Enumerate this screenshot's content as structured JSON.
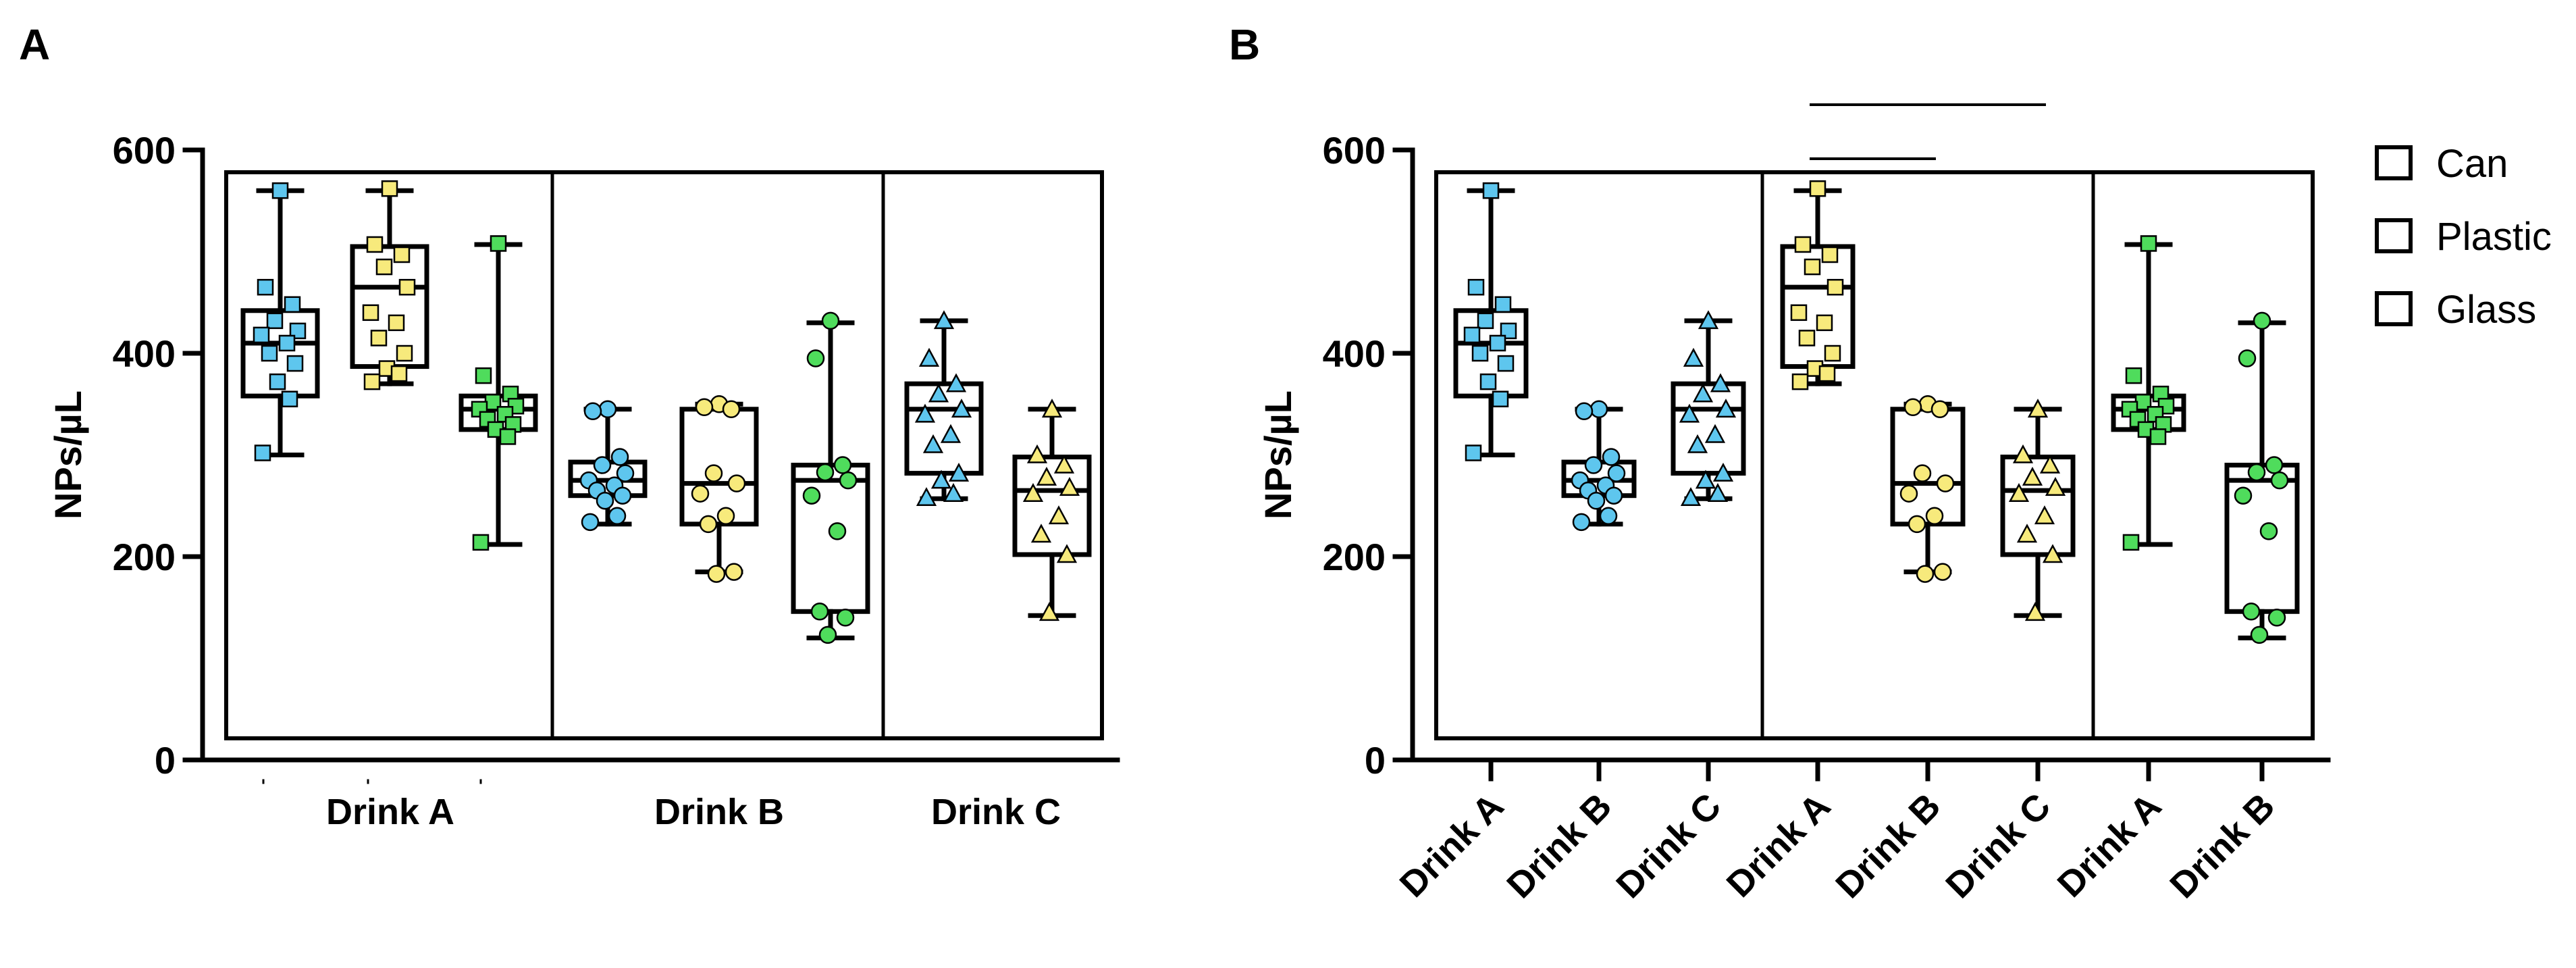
{
  "panel_a_label": "A",
  "panel_b_label": "B",
  "colors": {
    "can": "#5ec6ee",
    "plastic": "#f7ea7c",
    "glass": "#4fdc5c"
  },
  "legend": [
    {
      "label": "Can",
      "key": "can"
    },
    {
      "label": "Plastic",
      "key": "plastic"
    },
    {
      "label": "Glass",
      "key": "glass"
    }
  ],
  "chart_data": [
    {
      "type": "box",
      "panel": "A",
      "ylabel": "NPs/µL",
      "ylim": [
        0,
        600
      ],
      "yticks": [
        0,
        200,
        400,
        600
      ],
      "groups": [
        "Drink A",
        "Drink B",
        "Drink C"
      ],
      "boxes": [
        {
          "group": "Drink A",
          "series": "Can",
          "marker": "square",
          "min": 300,
          "q1": 358,
          "median": 410,
          "q3": 442,
          "max": 560,
          "points": [
            560,
            465,
            448,
            432,
            422,
            418,
            410,
            400,
            390,
            372,
            355,
            302
          ]
        },
        {
          "group": "Drink A",
          "series": "Plastic",
          "marker": "square",
          "min": 370,
          "q1": 387,
          "median": 465,
          "q3": 505,
          "max": 560,
          "points": [
            562,
            507,
            497,
            485,
            465,
            440,
            430,
            415,
            400,
            385,
            380,
            372
          ]
        },
        {
          "group": "Drink A",
          "series": "Glass",
          "marker": "square",
          "min": 212,
          "q1": 325,
          "median": 345,
          "q3": 358,
          "max": 507,
          "points": [
            508,
            378,
            360,
            352,
            348,
            345,
            340,
            335,
            330,
            325,
            318,
            214
          ]
        },
        {
          "group": "Drink B",
          "series": "Can",
          "marker": "circle",
          "min": 232,
          "q1": 260,
          "median": 275,
          "q3": 293,
          "max": 345,
          "points": [
            345,
            343,
            298,
            290,
            282,
            275,
            270,
            265,
            260,
            255,
            240,
            234
          ]
        },
        {
          "group": "Drink B",
          "series": "Plastic",
          "marker": "circle",
          "min": 185,
          "q1": 232,
          "median": 272,
          "q3": 345,
          "max": 350,
          "points": [
            350,
            347,
            345,
            282,
            272,
            262,
            240,
            232,
            185,
            183
          ]
        },
        {
          "group": "Drink B",
          "series": "Glass",
          "marker": "circle",
          "min": 120,
          "q1": 146,
          "median": 275,
          "q3": 290,
          "max": 430,
          "points": [
            432,
            395,
            290,
            283,
            275,
            260,
            225,
            146,
            140,
            123
          ]
        },
        {
          "group": "Drink C",
          "series": "Can",
          "marker": "triangle",
          "min": 257,
          "q1": 282,
          "median": 345,
          "q3": 370,
          "max": 432,
          "points": [
            432,
            395,
            370,
            360,
            345,
            340,
            320,
            310,
            282,
            275,
            262,
            258
          ]
        },
        {
          "group": "Drink C",
          "series": "Plastic",
          "marker": "triangle",
          "min": 142,
          "q1": 202,
          "median": 265,
          "q3": 298,
          "max": 345,
          "points": [
            345,
            300,
            290,
            278,
            268,
            262,
            240,
            222,
            202,
            145
          ]
        }
      ]
    },
    {
      "type": "box",
      "panel": "B",
      "ylabel": "NPs/µL",
      "ylim": [
        0,
        600
      ],
      "yticks": [
        0,
        200,
        400,
        600
      ],
      "categories": [
        "Drink A",
        "Drink B",
        "Drink C",
        "Drink A",
        "Drink B",
        "Drink C",
        "Drink A",
        "Drink B"
      ],
      "groups": [
        "Can",
        "Plastic",
        "Glass"
      ],
      "boxes": [
        {
          "category": "Drink A",
          "series": "Can",
          "marker": "square",
          "min": 300,
          "q1": 358,
          "median": 410,
          "q3": 442,
          "max": 560,
          "points": [
            560,
            465,
            448,
            432,
            422,
            418,
            410,
            400,
            390,
            372,
            355,
            302
          ]
        },
        {
          "category": "Drink B",
          "series": "Can",
          "marker": "circle",
          "min": 232,
          "q1": 260,
          "median": 275,
          "q3": 293,
          "max": 345,
          "points": [
            345,
            343,
            298,
            290,
            282,
            275,
            270,
            265,
            260,
            255,
            240,
            234
          ]
        },
        {
          "category": "Drink C",
          "series": "Can",
          "marker": "triangle",
          "min": 257,
          "q1": 282,
          "median": 345,
          "q3": 370,
          "max": 432,
          "points": [
            432,
            395,
            370,
            360,
            345,
            340,
            320,
            310,
            282,
            275,
            262,
            258
          ]
        },
        {
          "category": "Drink A",
          "series": "Plastic",
          "marker": "square",
          "min": 370,
          "q1": 387,
          "median": 465,
          "q3": 505,
          "max": 560,
          "points": [
            562,
            507,
            497,
            485,
            465,
            440,
            430,
            415,
            400,
            385,
            380,
            372
          ]
        },
        {
          "category": "Drink B",
          "series": "Plastic",
          "marker": "circle",
          "min": 185,
          "q1": 232,
          "median": 272,
          "q3": 345,
          "max": 350,
          "points": [
            350,
            347,
            345,
            282,
            272,
            262,
            240,
            232,
            185,
            183
          ]
        },
        {
          "category": "Drink C",
          "series": "Plastic",
          "marker": "triangle",
          "min": 142,
          "q1": 202,
          "median": 265,
          "q3": 298,
          "max": 345,
          "points": [
            345,
            300,
            290,
            278,
            268,
            262,
            240,
            222,
            202,
            145
          ]
        },
        {
          "category": "Drink A",
          "series": "Glass",
          "marker": "square",
          "min": 212,
          "q1": 325,
          "median": 345,
          "q3": 358,
          "max": 507,
          "points": [
            508,
            378,
            360,
            352,
            348,
            345,
            340,
            335,
            330,
            325,
            318,
            214
          ]
        },
        {
          "category": "Drink B",
          "series": "Glass",
          "marker": "circle",
          "min": 120,
          "q1": 146,
          "median": 275,
          "q3": 290,
          "max": 430,
          "points": [
            432,
            395,
            290,
            283,
            275,
            260,
            225,
            146,
            140,
            123
          ]
        }
      ],
      "significance_bars": [
        {
          "from": 3,
          "to": 5
        },
        {
          "from": 3,
          "to": 4
        }
      ]
    }
  ]
}
